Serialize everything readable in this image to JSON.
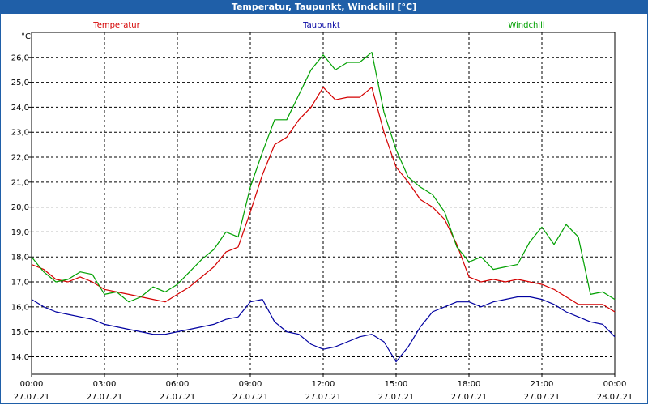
{
  "window": {
    "title": "Temperatur, Taupunkt, Windchill [°C]"
  },
  "chart_data": {
    "type": "line",
    "title": "Temperatur, Taupunkt, Windchill [°C]",
    "unit": "°C",
    "ylim": [
      13.3,
      27.0
    ],
    "yticks": [
      "26,0",
      "25,0",
      "24,0",
      "23,0",
      "22,0",
      "21,0",
      "20,0",
      "19,0",
      "18,0",
      "17,0",
      "16,0",
      "15,0",
      "14,0"
    ],
    "ytick_values": [
      26,
      25,
      24,
      23,
      22,
      21,
      20,
      19,
      18,
      17,
      16,
      15,
      14
    ],
    "x_hours_range": [
      0,
      24
    ],
    "xticks": [
      {
        "time": "00:00",
        "date": "27.07.21",
        "h": 0
      },
      {
        "time": "03:00",
        "date": "27.07.21",
        "h": 3
      },
      {
        "time": "06:00",
        "date": "27.07.21",
        "h": 6
      },
      {
        "time": "09:00",
        "date": "27.07.21",
        "h": 9
      },
      {
        "time": "12:00",
        "date": "27.07.21",
        "h": 12
      },
      {
        "time": "15:00",
        "date": "27.07.21",
        "h": 15
      },
      {
        "time": "18:00",
        "date": "27.07.21",
        "h": 18
      },
      {
        "time": "21:00",
        "date": "27.07.21",
        "h": 21
      },
      {
        "time": "00:00",
        "date": "28.07.21",
        "h": 24
      }
    ],
    "grid": true,
    "legend_placement": "top",
    "series": [
      {
        "name": "Temperatur",
        "color": "#d40000",
        "x": [
          0,
          0.5,
          1,
          1.5,
          2,
          2.5,
          3,
          3.5,
          4,
          4.5,
          5,
          5.5,
          6,
          6.5,
          7,
          7.5,
          8,
          8.5,
          9,
          9.5,
          10,
          10.5,
          11,
          11.5,
          12,
          12.5,
          13,
          13.5,
          14,
          14.5,
          15,
          15.5,
          16,
          16.5,
          17,
          17.5,
          18,
          18.5,
          19,
          19.5,
          20,
          20.5,
          21,
          21.5,
          22,
          22.5,
          23,
          23.5,
          24
        ],
        "values": [
          17.7,
          17.5,
          17.1,
          17.0,
          17.2,
          17.0,
          16.7,
          16.6,
          16.5,
          16.4,
          16.3,
          16.2,
          16.5,
          16.8,
          17.2,
          17.6,
          18.2,
          18.4,
          19.8,
          21.3,
          22.5,
          22.8,
          23.5,
          24.0,
          24.8,
          24.3,
          24.4,
          24.4,
          24.8,
          23.0,
          21.6,
          21.0,
          20.3,
          20.0,
          19.5,
          18.5,
          17.2,
          17.0,
          17.1,
          17.0,
          17.1,
          17.0,
          16.9,
          16.7,
          16.4,
          16.1,
          16.1,
          16.1,
          15.8
        ]
      },
      {
        "name": "Taupunkt",
        "color": "#0000a0",
        "x": [
          0,
          0.5,
          1,
          1.5,
          2,
          2.5,
          3,
          3.5,
          4,
          4.5,
          5,
          5.5,
          6,
          6.5,
          7,
          7.5,
          8,
          8.5,
          9,
          9.5,
          10,
          10.5,
          11,
          11.5,
          12,
          12.5,
          13,
          13.5,
          14,
          14.5,
          15,
          15.5,
          16,
          16.5,
          17,
          17.5,
          18,
          18.5,
          19,
          19.5,
          20,
          20.5,
          21,
          21.5,
          22,
          22.5,
          23,
          23.5,
          24
        ],
        "values": [
          16.3,
          16.0,
          15.8,
          15.7,
          15.6,
          15.5,
          15.3,
          15.2,
          15.1,
          15.0,
          14.9,
          14.9,
          15.0,
          15.1,
          15.2,
          15.3,
          15.5,
          15.6,
          16.2,
          16.3,
          15.4,
          15.0,
          14.9,
          14.5,
          14.3,
          14.4,
          14.6,
          14.8,
          14.9,
          14.6,
          13.8,
          14.4,
          15.2,
          15.8,
          16.0,
          16.2,
          16.2,
          16.0,
          16.2,
          16.3,
          16.4,
          16.4,
          16.3,
          16.1,
          15.8,
          15.6,
          15.4,
          15.3,
          14.8
        ]
      },
      {
        "name": "Windchill",
        "color": "#00a000",
        "x": [
          0,
          0.5,
          1,
          1.5,
          2,
          2.5,
          3,
          3.5,
          4,
          4.5,
          5,
          5.5,
          6,
          6.5,
          7,
          7.5,
          8,
          8.5,
          9,
          9.5,
          10,
          10.5,
          11,
          11.5,
          12,
          12.5,
          13,
          13.5,
          14,
          14.5,
          15,
          15.5,
          16,
          16.5,
          17,
          17.5,
          18,
          18.5,
          19,
          19.5,
          20,
          20.5,
          21,
          21.5,
          22,
          22.5,
          23,
          23.5,
          24
        ],
        "values": [
          18.0,
          17.4,
          17.0,
          17.1,
          17.4,
          17.3,
          16.5,
          16.6,
          16.2,
          16.4,
          16.8,
          16.6,
          16.9,
          17.4,
          17.9,
          18.3,
          19.0,
          18.8,
          20.8,
          22.2,
          23.5,
          23.5,
          24.5,
          25.5,
          26.1,
          25.5,
          25.8,
          25.8,
          26.2,
          23.8,
          22.3,
          21.2,
          20.8,
          20.5,
          19.8,
          18.4,
          17.8,
          18.0,
          17.5,
          17.6,
          17.7,
          18.6,
          19.2,
          18.5,
          19.3,
          18.8,
          16.5,
          16.6,
          16.3
        ]
      }
    ]
  }
}
